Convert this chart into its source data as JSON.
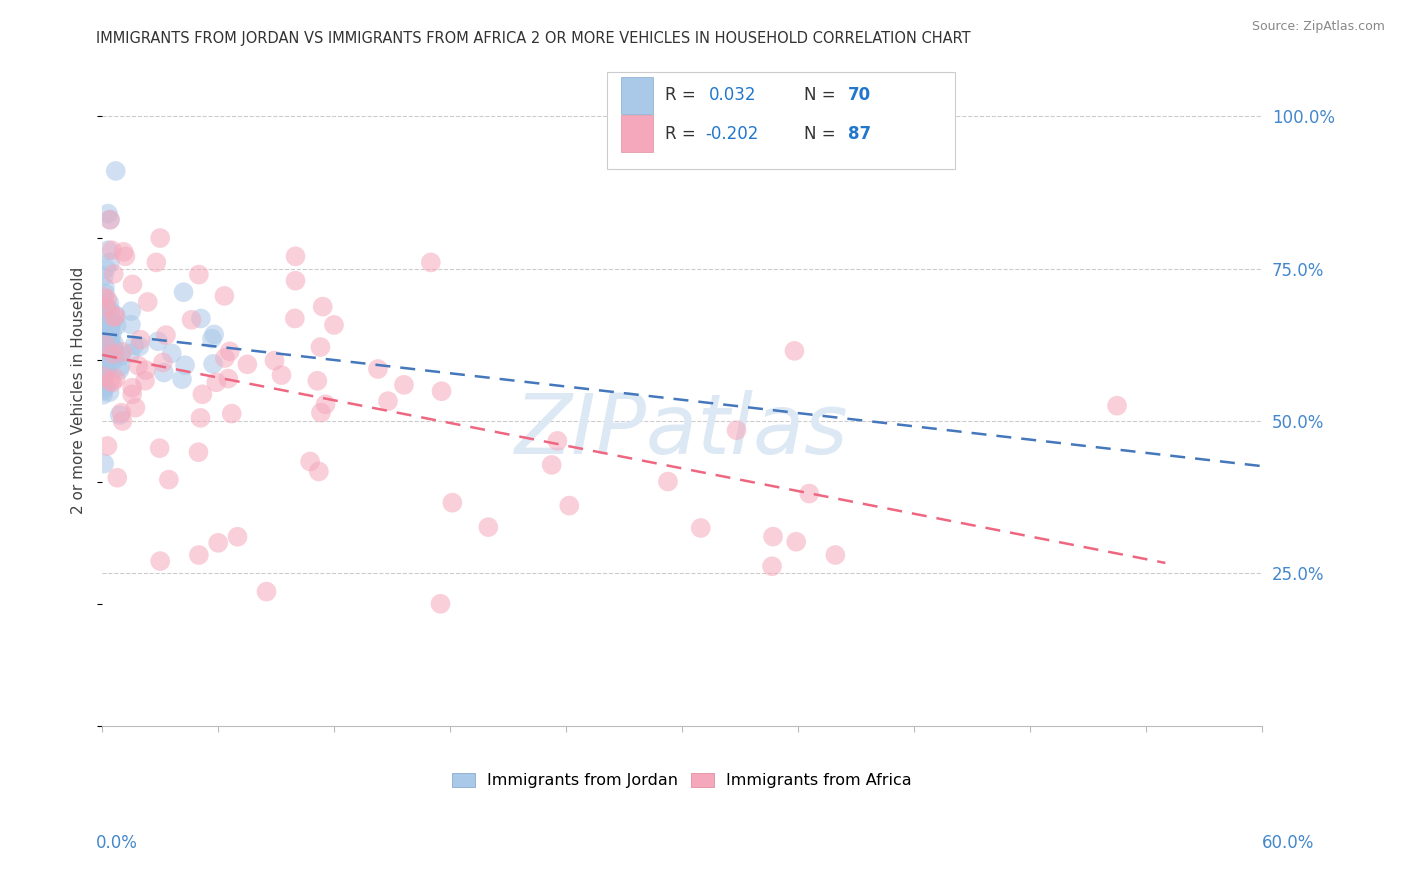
{
  "title": "IMMIGRANTS FROM JORDAN VS IMMIGRANTS FROM AFRICA 2 OR MORE VEHICLES IN HOUSEHOLD CORRELATION CHART",
  "source": "Source: ZipAtlas.com",
  "ylabel": "2 or more Vehicles in Household",
  "xlim": [
    0.0,
    0.6
  ],
  "ylim": [
    0.0,
    1.1
  ],
  "jordan_R": 0.032,
  "jordan_N": 70,
  "africa_R": -0.202,
  "africa_N": 87,
  "jordan_color": "#aac8e8",
  "africa_color": "#f5a8bc",
  "jordan_line_color": "#4477bb",
  "africa_line_color": "#ee6680",
  "watermark_text": "ZIPatlas",
  "watermark_color": "#dde8f5",
  "background_color": "#ffffff",
  "grid_color": "#cccccc",
  "ytick_color": "#4488cc",
  "legend_border_color": "#cccccc",
  "legend_text_color": "#333333",
  "legend_value_color": "#2277cc",
  "title_color": "#333333",
  "source_color": "#888888",
  "xlabel_color": "#4488cc"
}
